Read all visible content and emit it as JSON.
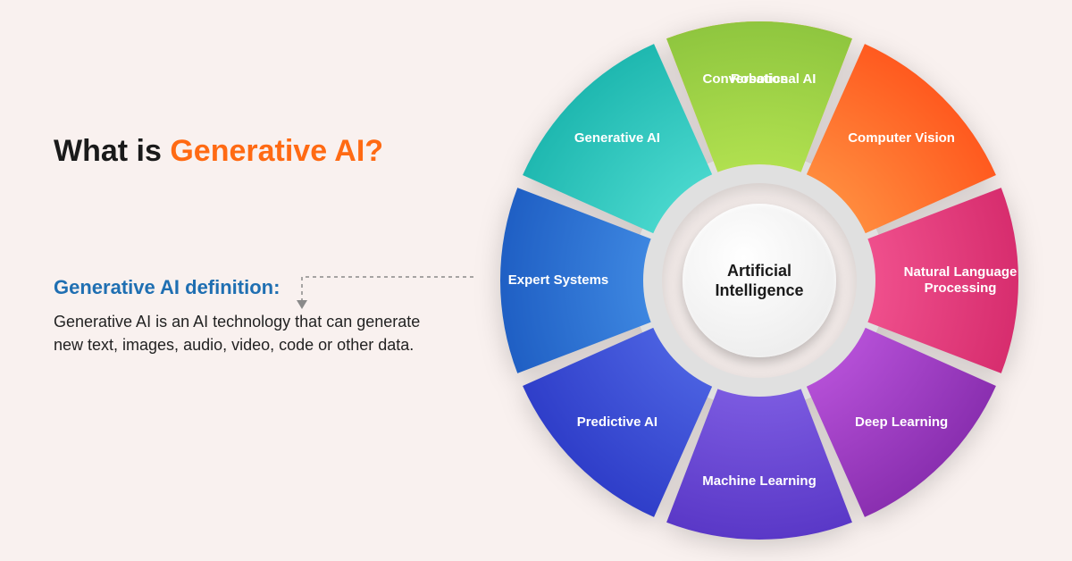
{
  "title": {
    "part1": "What is ",
    "part2": "Generative AI?",
    "fontsize": 34,
    "color_black": "#1a1a1a",
    "color_orange": "#ff6a13"
  },
  "subtitle": {
    "text": "Generative AI definition:",
    "color": "#1f6fb2",
    "fontsize": 22
  },
  "body": {
    "text": "Generative AI is an AI technology that can generate new text, images, audio, video, code or other data.",
    "color": "#222222",
    "fontsize": 18
  },
  "wheel": {
    "center_label": "Artificial\nIntelligence",
    "center_bg": "#f0f0f0",
    "inner_ring_color": "#e0e0e0",
    "inner_radius": 130,
    "outer_radius": 290,
    "gap_deg": 3,
    "label_radius": 225,
    "segments": [
      {
        "label": "Robotics",
        "angle_start": -112.5,
        "angle_end": -67.5,
        "color_outer": "#f6a20a",
        "color_inner": "#fbc94a"
      },
      {
        "label": "Computer Vision",
        "angle_start": -67.5,
        "angle_end": -22.5,
        "color_outer": "#ff5a1f",
        "color_inner": "#ff8a3d"
      },
      {
        "label": "Natural Language Processing",
        "angle_start": -22.5,
        "angle_end": 22.5,
        "color_outer": "#d72d6e",
        "color_inner": "#ef4f8c"
      },
      {
        "label": "Deep Learning",
        "angle_start": 22.5,
        "angle_end": 67.5,
        "color_outer": "#8a2fb0",
        "color_inner": "#b44fd6"
      },
      {
        "label": "Machine Learning",
        "angle_start": 67.5,
        "angle_end": 112.5,
        "color_outer": "#5a38c7",
        "color_inner": "#7b5ae0"
      },
      {
        "label": "Predictive AI",
        "angle_start": 112.5,
        "angle_end": 157.5,
        "color_outer": "#2f3ec9",
        "color_inner": "#4a60e0"
      },
      {
        "label": "Expert Systems",
        "angle_start": 157.5,
        "angle_end": 202.5,
        "color_outer": "#1f5fc4",
        "color_inner": "#3d86e0"
      },
      {
        "label": "Generative AI",
        "angle_start": 202.5,
        "angle_end": 247.5,
        "color_outer": "#1fb8b0",
        "color_inner": "#47d6cc"
      },
      {
        "label": "Conversational AI",
        "angle_start": 247.5,
        "angle_end": 292.5,
        "color_outer": "#8fc63f",
        "color_inner": "#b0e04f"
      }
    ]
  },
  "connector": {
    "color": "#8a8a8a",
    "stroke_width": 1.5,
    "dash": "4 4"
  },
  "background_color": "#f9f1ef"
}
